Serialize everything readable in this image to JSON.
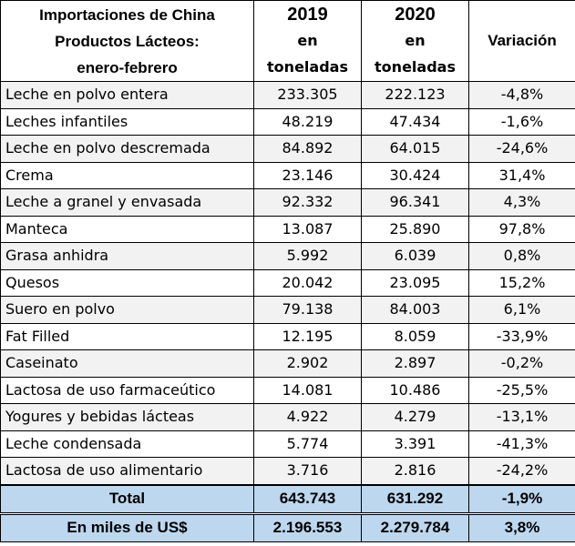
{
  "header": {
    "title_lines": [
      "Importaciones de China",
      "Productos Lácteos:",
      "enero-febrero"
    ],
    "year1": "2019",
    "year2": "2020",
    "unit_line1": "en",
    "unit_line2": "toneladas",
    "variation": "Variación"
  },
  "rows": [
    {
      "product": "Leche en polvo entera",
      "v2019": "233.305",
      "v2020": "222.123",
      "var": "-4,8%"
    },
    {
      "product": "Leches infantiles",
      "v2019": "48.219",
      "v2020": "47.434",
      "var": "-1,6%"
    },
    {
      "product": "Leche en polvo descremada",
      "v2019": "84.892",
      "v2020": "64.015",
      "var": "-24,6%"
    },
    {
      "product": "Crema",
      "v2019": "23.146",
      "v2020": "30.424",
      "var": "31,4%"
    },
    {
      "product": "Leche a granel y envasada",
      "v2019": "92.332",
      "v2020": "96.341",
      "var": "4,3%"
    },
    {
      "product": "Manteca",
      "v2019": "13.087",
      "v2020": "25.890",
      "var": "97,8%"
    },
    {
      "product": "Grasa anhidra",
      "v2019": "5.992",
      "v2020": "6.039",
      "var": "0,8%"
    },
    {
      "product": "Quesos",
      "v2019": "20.042",
      "v2020": "23.095",
      "var": "15,2%"
    },
    {
      "product": "Suero en polvo",
      "v2019": "79.138",
      "v2020": "84.003",
      "var": "6,1%"
    },
    {
      "product": "Fat Filled",
      "v2019": "12.195",
      "v2020": "8.059",
      "var": "-33,9%"
    },
    {
      "product": "Caseinato",
      "v2019": "2.902",
      "v2020": "2.897",
      "var": "-0,2%"
    },
    {
      "product": "Lactosa de uso farmaceútico",
      "v2019": "14.081",
      "v2020": "10.486",
      "var": "-25,5%"
    },
    {
      "product": "Yogures y bebidas lácteas",
      "v2019": "4.922",
      "v2020": "4.279",
      "var": "-13,1%"
    },
    {
      "product": "Leche condensada",
      "v2019": "5.774",
      "v2020": "3.391",
      "var": "-41,3%"
    },
    {
      "product": "Lactosa de uso alimentario",
      "v2019": "3.716",
      "v2020": "2.816",
      "var": "-24,2%"
    }
  ],
  "total": {
    "label": "Total",
    "v2019": "643.743",
    "v2020": "631.292",
    "var": "-1,9%"
  },
  "usd": {
    "label": "En miles de US$",
    "v2019": "2.196.553",
    "v2020": "2.279.784",
    "var": "3,8%"
  },
  "colors": {
    "stripe": "#f2f2f2",
    "footer": "#bdd7ee",
    "border": "#000000"
  }
}
